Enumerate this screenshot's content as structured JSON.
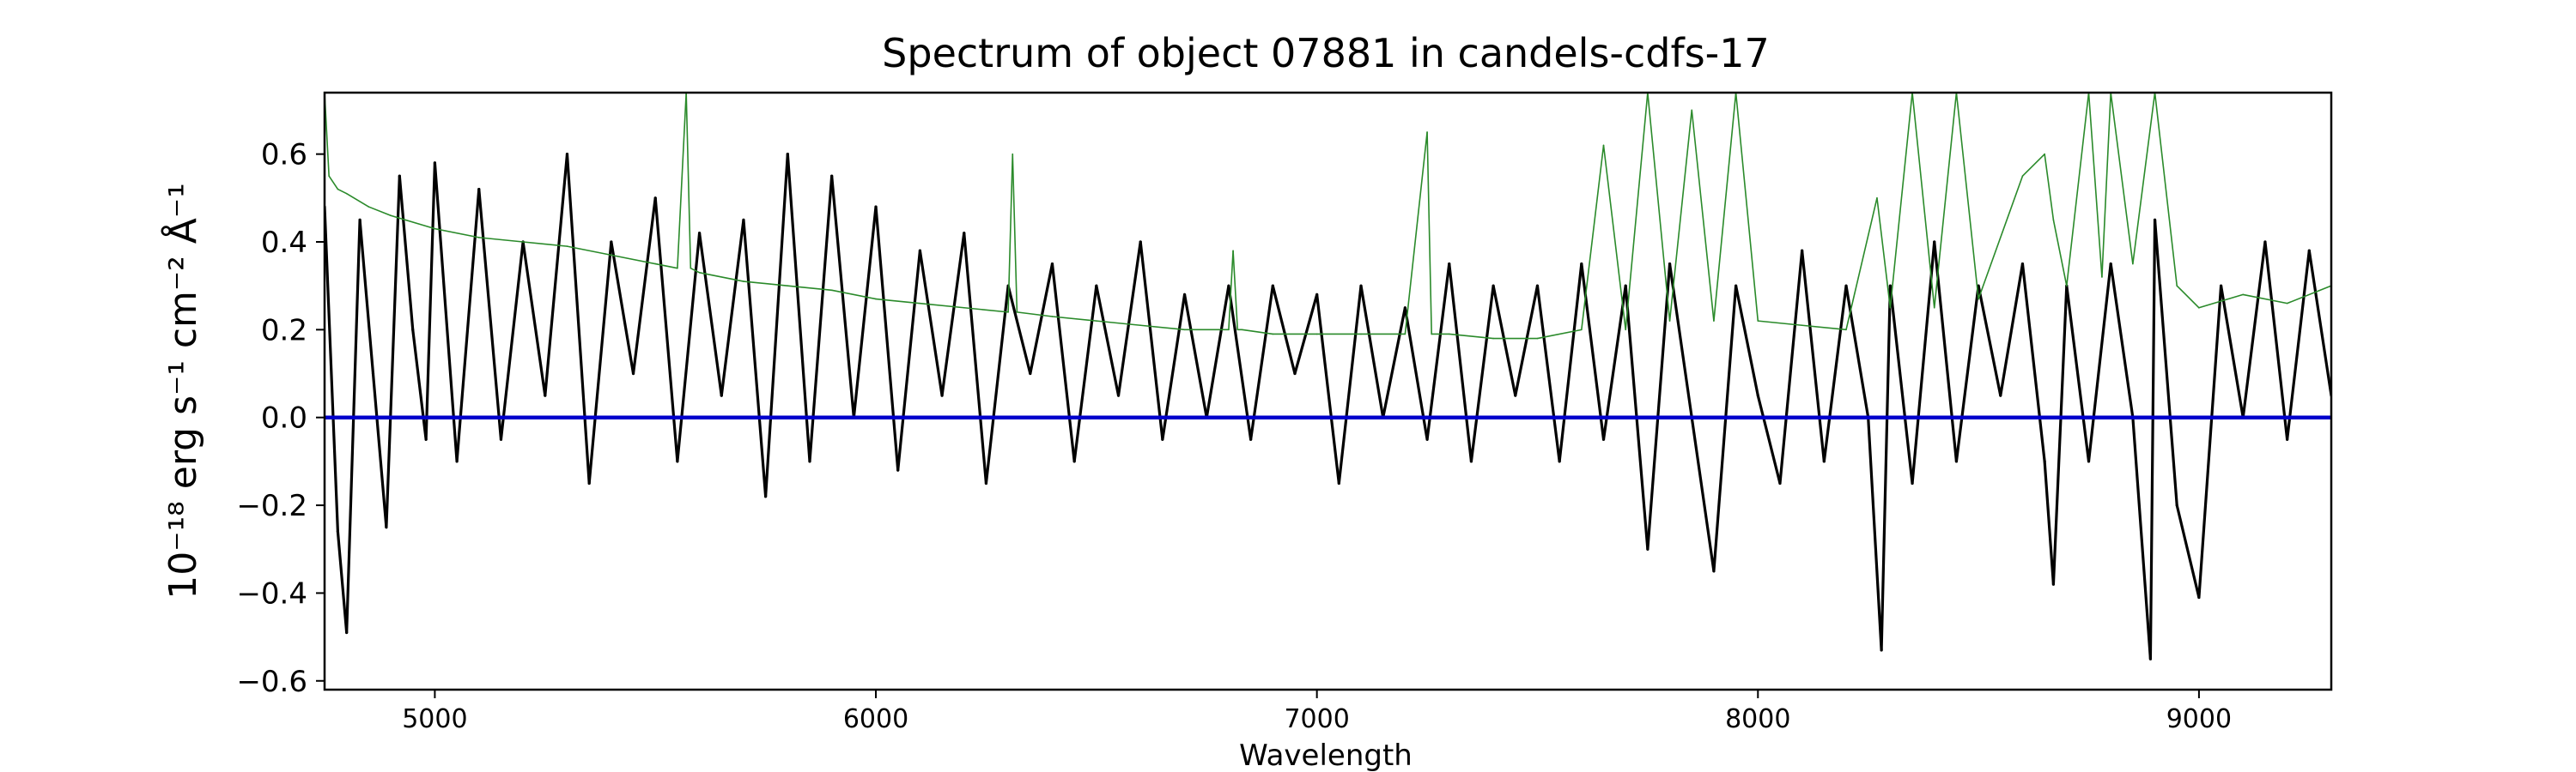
{
  "chart_data": {
    "type": "line",
    "title": "Spectrum of object 07881 in candels-cdfs-17",
    "xlabel": "Wavelength",
    "ylabel": "10⁻¹⁸ erg s⁻¹ cm⁻² Å⁻¹",
    "xlim": [
      4750,
      9300
    ],
    "ylim": [
      -0.62,
      0.74
    ],
    "xticks": [
      5000,
      6000,
      7000,
      8000,
      9000
    ],
    "xtick_labels": [
      "5000",
      "6000",
      "7000",
      "8000",
      "9000"
    ],
    "yticks": [
      -0.6,
      -0.4,
      -0.2,
      0.0,
      0.2,
      0.4,
      0.6
    ],
    "ytick_labels": [
      "−0.6",
      "−0.4",
      "−0.2",
      "0.0",
      "0.2",
      "0.4",
      "0.6"
    ],
    "grid": false,
    "legend": "none",
    "colors": {
      "flux": "#000000",
      "error": "#2a8a2a",
      "zero": "#0000cc",
      "axes": "#000000"
    },
    "series": [
      {
        "role": "flux",
        "x": [
          4750,
          4780,
          4800,
          4830,
          4860,
          4890,
          4920,
          4950,
          4980,
          5000,
          5050,
          5100,
          5150,
          5200,
          5250,
          5300,
          5350,
          5400,
          5450,
          5500,
          5550,
          5600,
          5650,
          5700,
          5750,
          5800,
          5850,
          5900,
          5950,
          6000,
          6050,
          6100,
          6150,
          6200,
          6250,
          6300,
          6350,
          6400,
          6450,
          6500,
          6550,
          6600,
          6650,
          6700,
          6750,
          6800,
          6850,
          6900,
          6950,
          7000,
          7050,
          7100,
          7150,
          7200,
          7250,
          7300,
          7350,
          7400,
          7450,
          7500,
          7550,
          7600,
          7650,
          7700,
          7750,
          7800,
          7850,
          7900,
          7950,
          8000,
          8050,
          8100,
          8150,
          8200,
          8250,
          8280,
          8300,
          8350,
          8400,
          8450,
          8500,
          8550,
          8600,
          8650,
          8670,
          8700,
          8750,
          8800,
          8850,
          8890,
          8900,
          8950,
          9000,
          9050,
          9100,
          9150,
          9200,
          9250,
          9300
        ],
        "y": [
          0.48,
          -0.26,
          -0.49,
          0.45,
          0.1,
          -0.25,
          0.55,
          0.2,
          -0.05,
          0.58,
          -0.1,
          0.52,
          -0.05,
          0.4,
          0.05,
          0.6,
          -0.15,
          0.4,
          0.1,
          0.5,
          -0.1,
          0.42,
          0.05,
          0.45,
          -0.18,
          0.6,
          -0.1,
          0.55,
          0.0,
          0.48,
          -0.12,
          0.38,
          0.05,
          0.42,
          -0.15,
          0.3,
          0.1,
          0.35,
          -0.1,
          0.3,
          0.05,
          0.4,
          -0.05,
          0.28,
          0.0,
          0.3,
          -0.05,
          0.3,
          0.1,
          0.28,
          -0.15,
          0.3,
          0.0,
          0.25,
          -0.05,
          0.35,
          -0.1,
          0.3,
          0.05,
          0.3,
          -0.1,
          0.35,
          -0.05,
          0.3,
          -0.3,
          0.35,
          0.0,
          -0.35,
          0.3,
          0.05,
          -0.15,
          0.38,
          -0.1,
          0.3,
          0.0,
          -0.53,
          0.3,
          -0.15,
          0.4,
          -0.1,
          0.3,
          0.05,
          0.35,
          -0.1,
          -0.38,
          0.3,
          -0.1,
          0.35,
          0.0,
          -0.55,
          0.45,
          -0.2,
          -0.41,
          0.3,
          0.0,
          0.4,
          -0.05,
          0.38,
          0.05
        ]
      },
      {
        "role": "error",
        "x": [
          4750,
          4760,
          4780,
          4800,
          4850,
          4900,
          5000,
          5100,
          5200,
          5300,
          5400,
          5500,
          5550,
          5570,
          5580,
          5600,
          5700,
          5800,
          5900,
          6000,
          6100,
          6200,
          6300,
          6310,
          6320,
          6400,
          6500,
          6600,
          6700,
          6800,
          6810,
          6820,
          6830,
          6900,
          7000,
          7100,
          7200,
          7250,
          7260,
          7300,
          7400,
          7500,
          7600,
          7650,
          7700,
          7750,
          7800,
          7850,
          7900,
          7950,
          8000,
          8100,
          8200,
          8270,
          8300,
          8350,
          8400,
          8450,
          8500,
          8600,
          8650,
          8670,
          8700,
          8750,
          8780,
          8800,
          8850,
          8900,
          8950,
          9000,
          9100,
          9200,
          9300
        ],
        "y": [
          0.74,
          0.55,
          0.52,
          0.51,
          0.48,
          0.46,
          0.43,
          0.41,
          0.4,
          0.39,
          0.37,
          0.35,
          0.34,
          0.74,
          0.34,
          0.33,
          0.31,
          0.3,
          0.29,
          0.27,
          0.26,
          0.25,
          0.24,
          0.6,
          0.24,
          0.23,
          0.22,
          0.21,
          0.2,
          0.2,
          0.38,
          0.2,
          0.2,
          0.19,
          0.19,
          0.19,
          0.19,
          0.65,
          0.19,
          0.19,
          0.18,
          0.18,
          0.2,
          0.62,
          0.2,
          0.74,
          0.22,
          0.7,
          0.22,
          0.74,
          0.22,
          0.21,
          0.2,
          0.5,
          0.25,
          0.74,
          0.25,
          0.74,
          0.27,
          0.55,
          0.6,
          0.45,
          0.3,
          0.74,
          0.32,
          0.74,
          0.35,
          0.74,
          0.3,
          0.25,
          0.28,
          0.26,
          0.3
        ]
      },
      {
        "role": "zero",
        "x": [
          4750,
          9300
        ],
        "y": [
          0.0,
          0.0
        ]
      }
    ]
  }
}
